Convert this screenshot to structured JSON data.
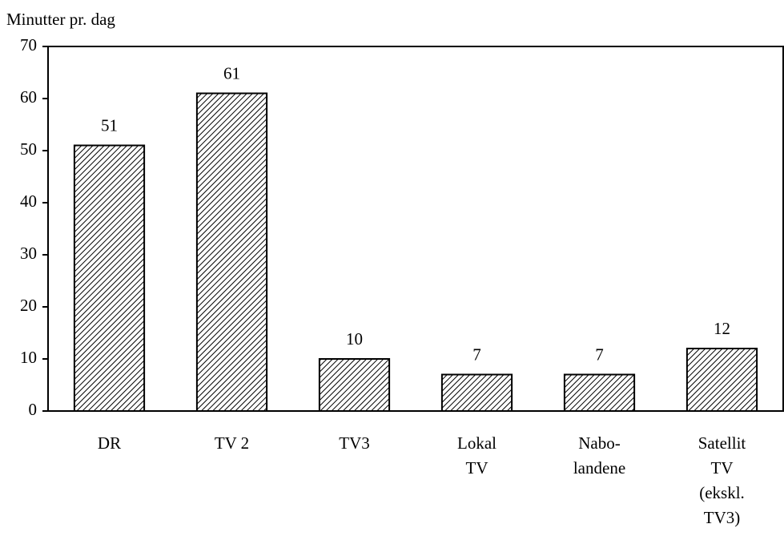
{
  "chart_data": {
    "type": "bar",
    "ylabel": "Minutter pr. dag",
    "categories": [
      [
        "DR"
      ],
      [
        "TV 2"
      ],
      [
        "TV3"
      ],
      [
        "Lokal",
        "TV"
      ],
      [
        "Nabo-",
        "landene"
      ],
      [
        "Satellit",
        "TV",
        "(ekskl.",
        "TV3)"
      ]
    ],
    "values": [
      51,
      61,
      10,
      7,
      7,
      12
    ],
    "color": "#000000",
    "ylim": [
      0,
      70
    ],
    "yticks": [
      0,
      10,
      20,
      30,
      40,
      50,
      60,
      70
    ],
    "grid": false
  }
}
